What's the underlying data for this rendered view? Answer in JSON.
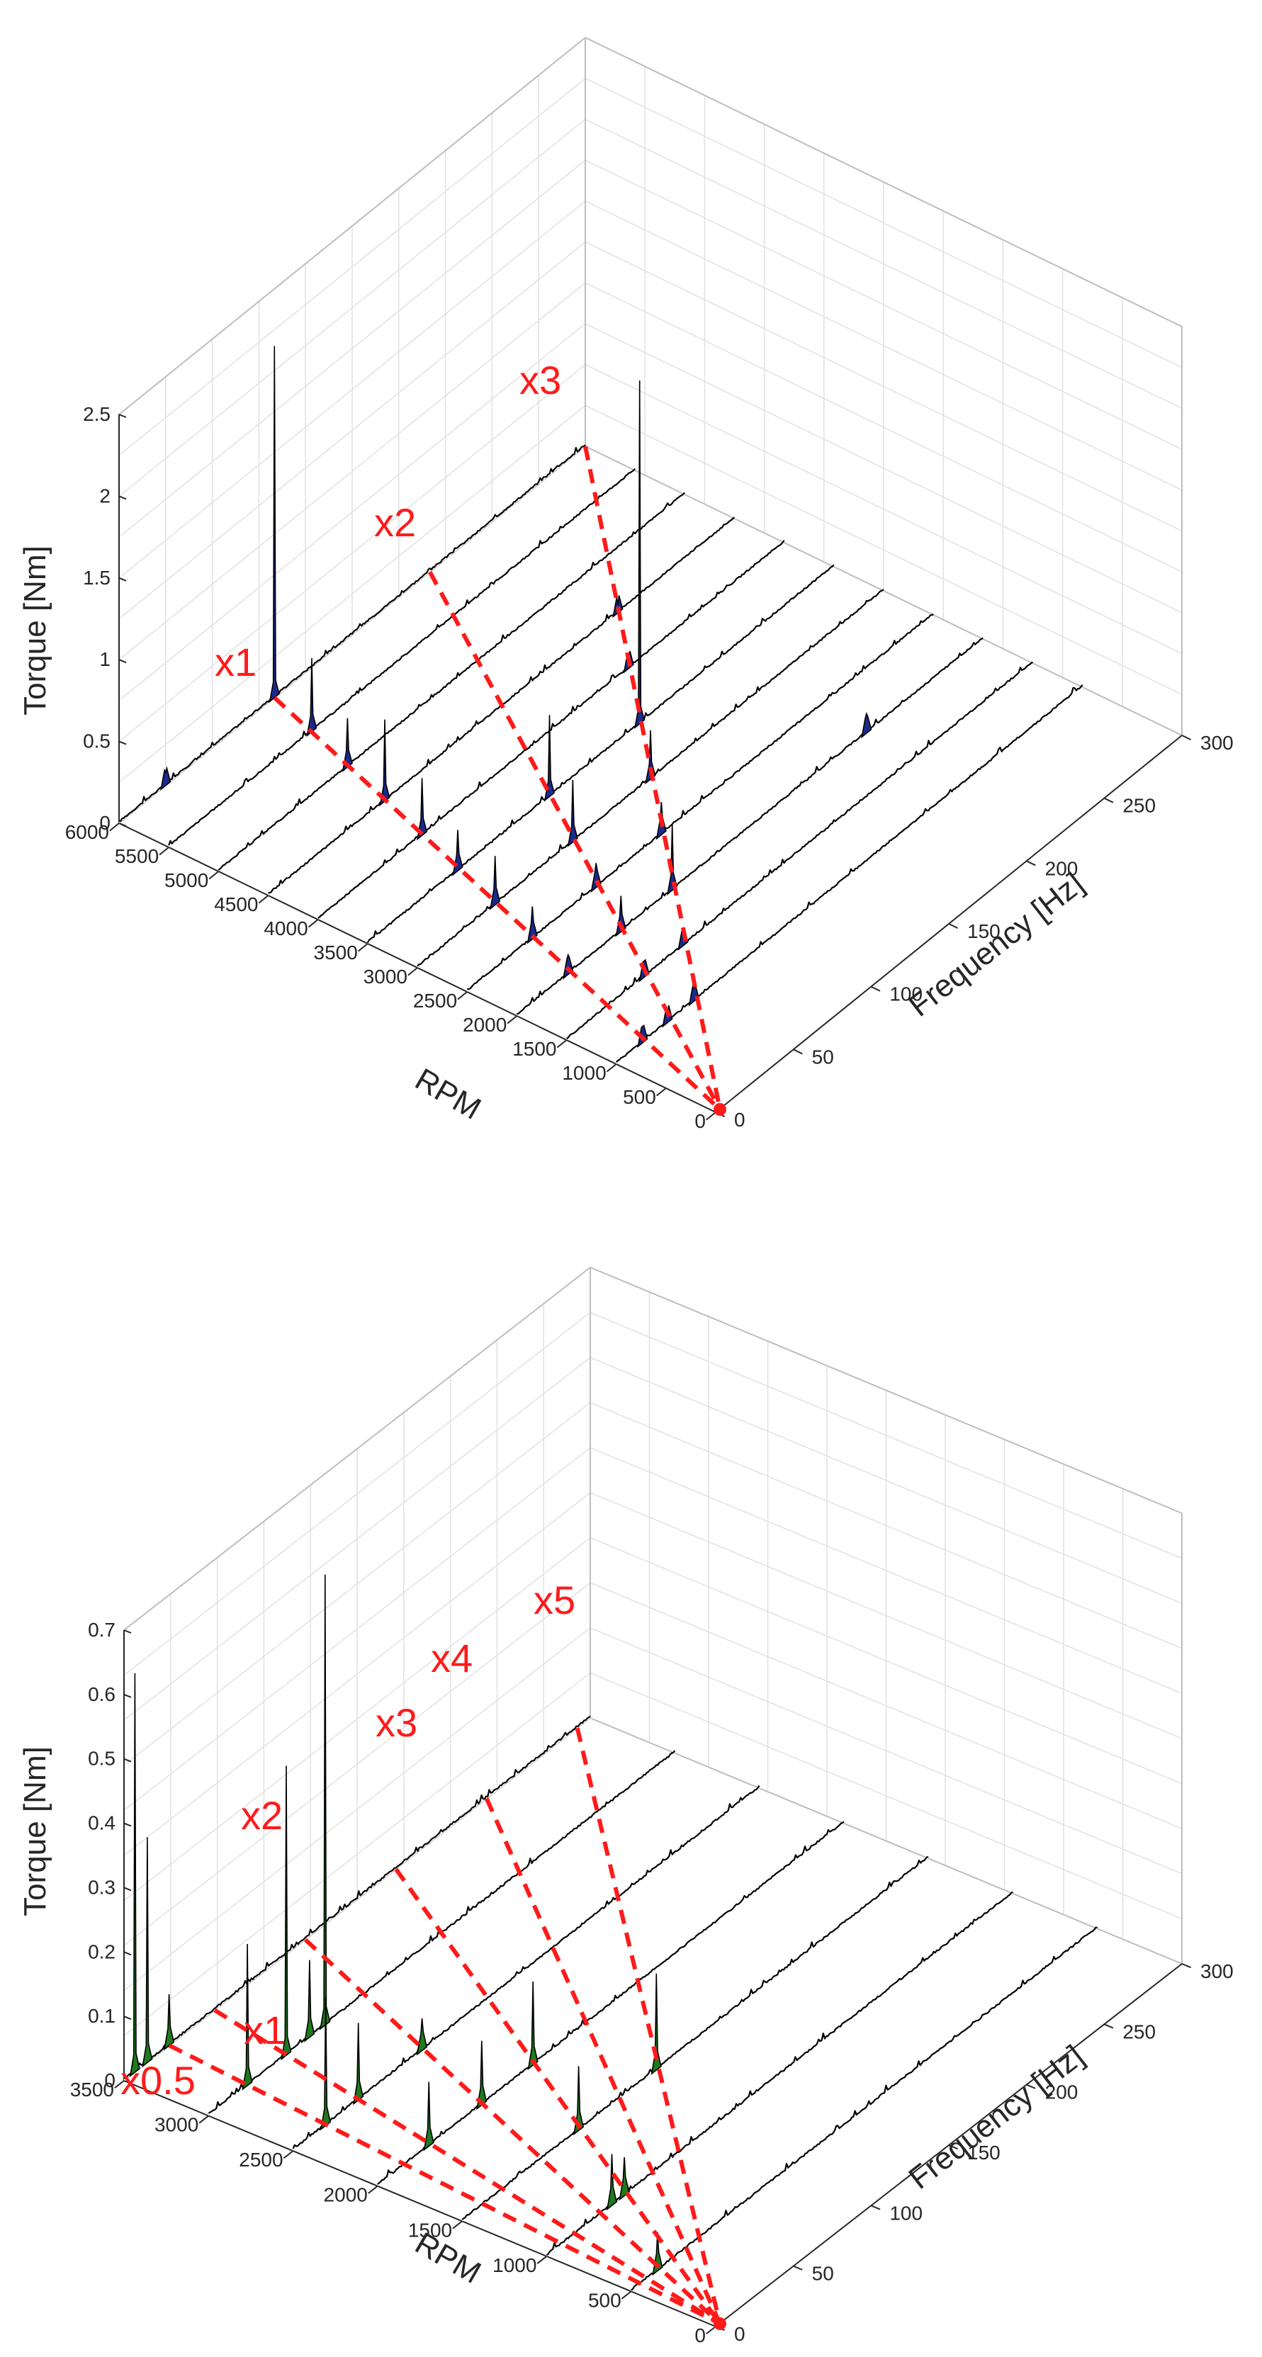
{
  "chart_data": [
    {
      "type": "waterfall",
      "title": "",
      "xlabel": "RPM",
      "ylabel": "Frequency [Hz]",
      "zlabel": "Torque [Nm]",
      "x_ticks": [
        "0",
        "500",
        "1000",
        "1500",
        "2000",
        "2500",
        "3000",
        "3500",
        "4000",
        "4500",
        "5000",
        "5500",
        "6000"
      ],
      "y_ticks": [
        "0",
        "50",
        "100",
        "150",
        "200",
        "250",
        "300"
      ],
      "z_ticks": [
        "0",
        "0.5",
        "1",
        "1.5",
        "2",
        "2.5"
      ],
      "xlim": [
        0,
        6000
      ],
      "ylim": [
        0,
        300
      ],
      "zlim": [
        0,
        2.5
      ],
      "fill_color": "#1a2a8c",
      "rpm_slices": [
        1000,
        1500,
        2000,
        2500,
        3000,
        3500,
        4000,
        4500,
        5000,
        5500,
        6000
      ],
      "peaks": [
        {
          "rpm": 6000,
          "freq": 100,
          "torque": 2.15
        },
        {
          "rpm": 6000,
          "freq": 30,
          "torque": 0.08
        },
        {
          "rpm": 5500,
          "freq": 92,
          "torque": 0.45
        },
        {
          "rpm": 5000,
          "freq": 83,
          "torque": 0.3
        },
        {
          "rpm": 4500,
          "freq": 75,
          "torque": 0.5
        },
        {
          "rpm": 4500,
          "freq": 225,
          "torque": 0.05
        },
        {
          "rpm": 4000,
          "freq": 67,
          "torque": 0.35
        },
        {
          "rpm": 4000,
          "freq": 200,
          "torque": 0.05
        },
        {
          "rpm": 3500,
          "freq": 58,
          "torque": 0.25
        },
        {
          "rpm": 3500,
          "freq": 117,
          "torque": 0.5
        },
        {
          "rpm": 3500,
          "freq": 175,
          "torque": 2.1
        },
        {
          "rpm": 3000,
          "freq": 50,
          "torque": 0.3
        },
        {
          "rpm": 3000,
          "freq": 100,
          "torque": 0.38
        },
        {
          "rpm": 3000,
          "freq": 150,
          "torque": 0.3
        },
        {
          "rpm": 2500,
          "freq": 42,
          "torque": 0.2
        },
        {
          "rpm": 2500,
          "freq": 83,
          "torque": 0.15
        },
        {
          "rpm": 2500,
          "freq": 125,
          "torque": 0.2
        },
        {
          "rpm": 2000,
          "freq": 33,
          "torque": 0.12
        },
        {
          "rpm": 2000,
          "freq": 67,
          "torque": 0.22
        },
        {
          "rpm": 2000,
          "freq": 100,
          "torque": 0.4
        },
        {
          "rpm": 2000,
          "freq": 225,
          "torque": 0.12
        },
        {
          "rpm": 1500,
          "freq": 50,
          "torque": 0.1
        },
        {
          "rpm": 1500,
          "freq": 75,
          "torque": 0.1
        },
        {
          "rpm": 1000,
          "freq": 17,
          "torque": 0.1
        },
        {
          "rpm": 1000,
          "freq": 33,
          "torque": 0.05
        },
        {
          "rpm": 1000,
          "freq": 50,
          "torque": 0.08
        }
      ],
      "orders": [
        {
          "label": "x1",
          "multiple": 1
        },
        {
          "label": "x2",
          "multiple": 2
        },
        {
          "label": "x3",
          "multiple": 3
        }
      ]
    },
    {
      "type": "waterfall",
      "title": "",
      "xlabel": "RPM",
      "ylabel": "Frequency [Hz]",
      "zlabel": "Torque [Nm]",
      "x_ticks": [
        "0",
        "500",
        "1000",
        "1500",
        "2000",
        "2500",
        "3000",
        "3500"
      ],
      "y_ticks": [
        "0",
        "50",
        "100",
        "150",
        "200",
        "250",
        "300"
      ],
      "z_ticks": [
        "0",
        "0.1",
        "0.2",
        "0.3",
        "0.4",
        "0.5",
        "0.6",
        "0.7"
      ],
      "xlim": [
        0,
        3500
      ],
      "ylim": [
        0,
        300
      ],
      "zlim": [
        0,
        0.7
      ],
      "fill_color": "#1f7a1f",
      "rpm_slices": [
        500,
        1000,
        1500,
        2000,
        2500,
        3000,
        3500
      ],
      "peaks": [
        {
          "rpm": 3500,
          "freq": 7,
          "torque": 0.62
        },
        {
          "rpm": 3500,
          "freq": 15,
          "torque": 0.35
        },
        {
          "rpm": 3500,
          "freq": 29,
          "torque": 0.08
        },
        {
          "rpm": 3000,
          "freq": 25,
          "torque": 0.22
        },
        {
          "rpm": 3000,
          "freq": 50,
          "torque": 0.45
        },
        {
          "rpm": 3000,
          "freq": 65,
          "torque": 0.12
        },
        {
          "rpm": 3000,
          "freq": 75,
          "torque": 0.7
        },
        {
          "rpm": 2500,
          "freq": 21,
          "torque": 0.2
        },
        {
          "rpm": 2500,
          "freq": 42,
          "torque": 0.12
        },
        {
          "rpm": 2500,
          "freq": 83,
          "torque": 0.05
        },
        {
          "rpm": 2000,
          "freq": 33,
          "torque": 0.1
        },
        {
          "rpm": 2000,
          "freq": 67,
          "torque": 0.1
        },
        {
          "rpm": 2000,
          "freq": 100,
          "torque": 0.13
        },
        {
          "rpm": 1500,
          "freq": 75,
          "torque": 0.1
        },
        {
          "rpm": 1500,
          "freq": 125,
          "torque": 0.15
        },
        {
          "rpm": 1000,
          "freq": 42,
          "torque": 0.08
        },
        {
          "rpm": 1000,
          "freq": 50,
          "torque": 0.06
        },
        {
          "rpm": 500,
          "freq": 17,
          "torque": 0.06
        }
      ],
      "orders": [
        {
          "label": "x0.5",
          "multiple": 0.5
        },
        {
          "label": "x1",
          "multiple": 1
        },
        {
          "label": "x2",
          "multiple": 2
        },
        {
          "label": "x3",
          "multiple": 3
        },
        {
          "label": "x4",
          "multiple": 4
        },
        {
          "label": "x5",
          "multiple": 5
        }
      ]
    }
  ]
}
